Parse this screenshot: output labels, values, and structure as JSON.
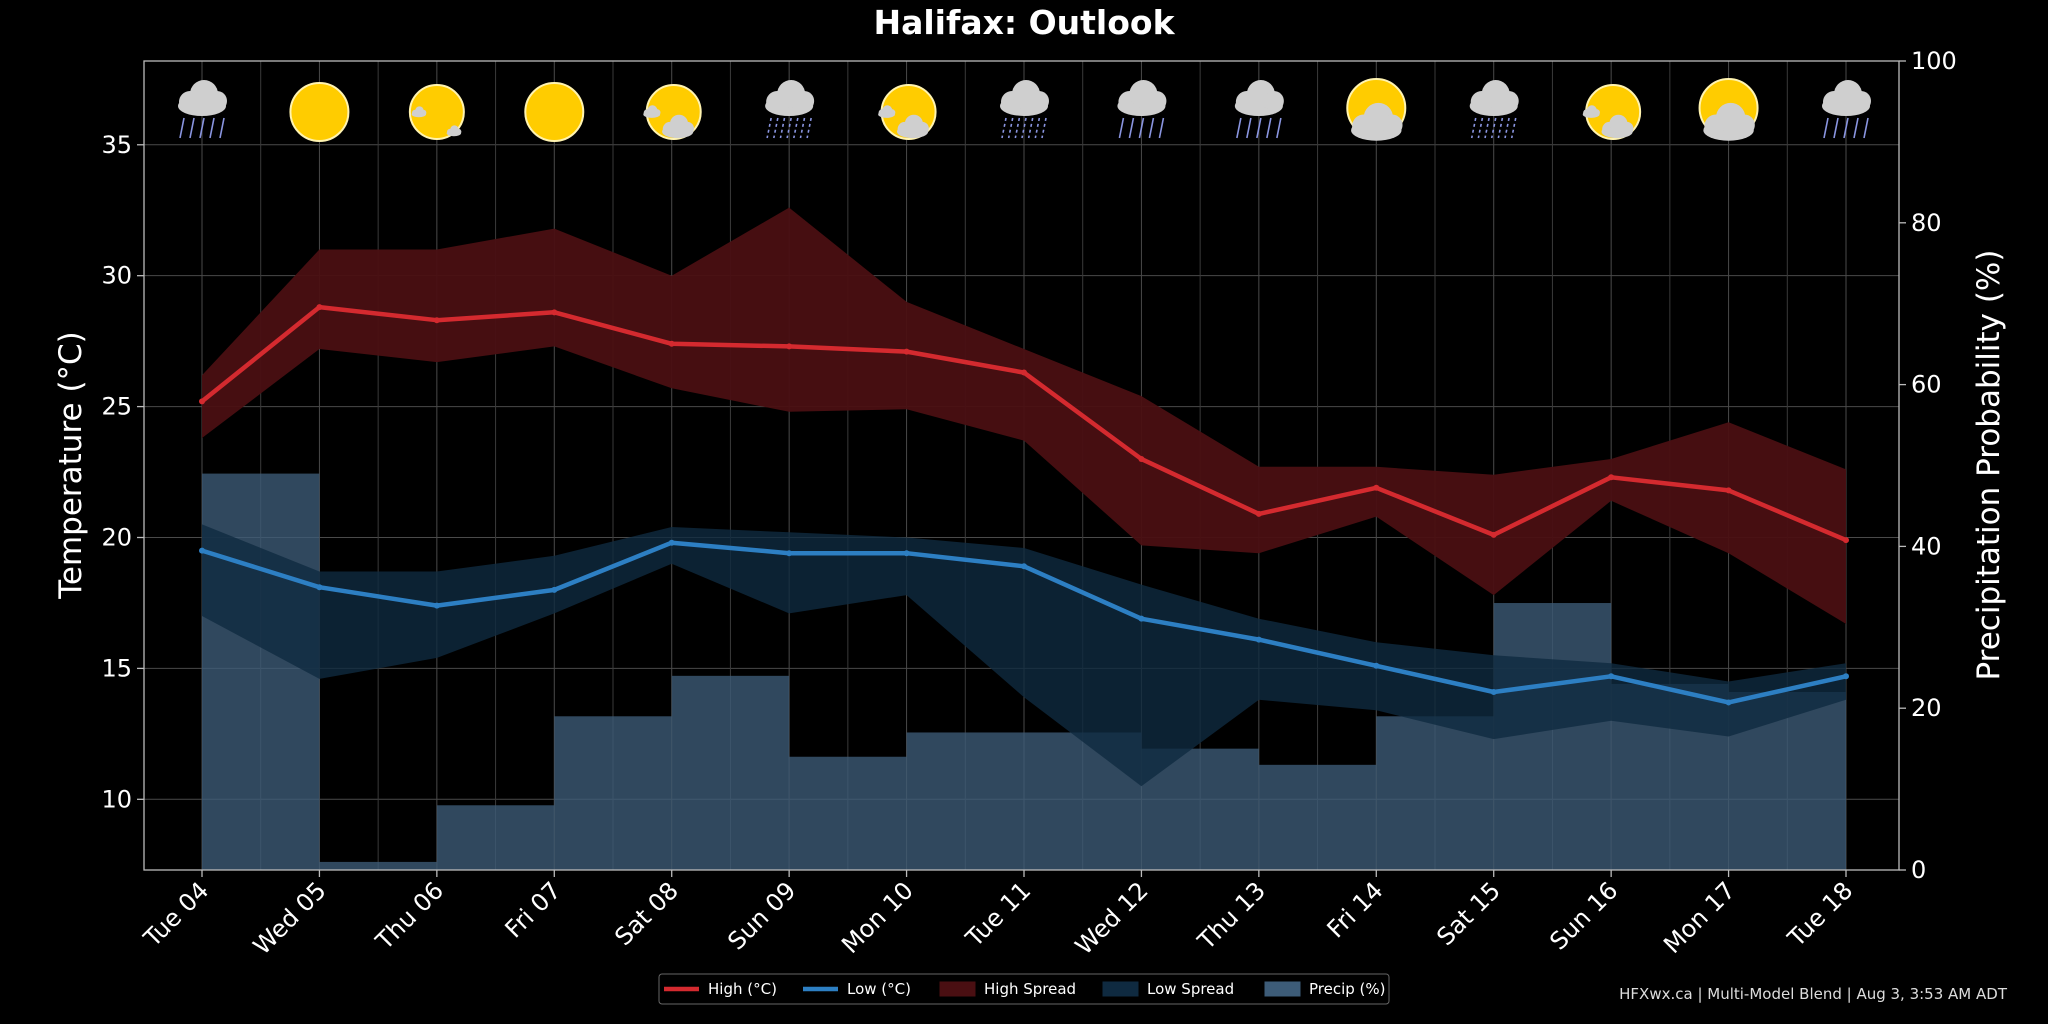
{
  "chart_data": {
    "type": "line",
    "title": "Halifax: Outlook",
    "ylabel": "Temperature (°C)",
    "y2label": "Precipitation Probability (%)",
    "ylim": [
      7.3,
      38.2
    ],
    "y2lim": [
      0,
      100
    ],
    "yticks": [
      10,
      15,
      20,
      25,
      30,
      35
    ],
    "y2ticks": [
      0,
      20,
      40,
      60,
      80,
      100
    ],
    "categories": [
      "Tue 04",
      "Wed 05",
      "Thu 06",
      "Fri 07",
      "Sat 08",
      "Sun 09",
      "Mon 10",
      "Tue 11",
      "Wed 12",
      "Thu 13",
      "Fri 14",
      "Sat 15",
      "Sun 16",
      "Mon 17",
      "Tue 18"
    ],
    "icons": [
      "rain-icon",
      "sun-icon",
      "mostly-sunny-icon",
      "sun-icon",
      "partly-cloudy-icon",
      "heavy-rain-icon",
      "partly-cloudy-icon",
      "heavy-rain-icon",
      "rain-icon",
      "rain-icon",
      "mostly-cloudy-icon",
      "heavy-rain-icon",
      "partly-cloudy-icon",
      "mostly-cloudy-icon",
      "rain-icon"
    ],
    "series": [
      {
        "name": "High (°C)",
        "color": "#d42a2f",
        "values": [
          25.2,
          28.8,
          28.3,
          28.6,
          27.4,
          27.3,
          27.1,
          26.3,
          23.0,
          20.9,
          21.9,
          20.1,
          22.3,
          21.8,
          19.9
        ]
      },
      {
        "name": "Low (°C)",
        "color": "#2d7fc3",
        "values": [
          19.5,
          18.1,
          17.4,
          18.0,
          19.8,
          19.4,
          19.4,
          18.9,
          16.9,
          16.1,
          15.1,
          14.1,
          14.7,
          13.7,
          14.7
        ]
      },
      {
        "name": "High Spread",
        "color": "#4a0f12",
        "upper": [
          26.2,
          31.0,
          31.0,
          31.8,
          30.0,
          32.6,
          29.0,
          27.2,
          25.4,
          22.7,
          22.7,
          22.4,
          23.0,
          24.4,
          22.6
        ],
        "lower": [
          23.8,
          27.2,
          26.7,
          27.3,
          25.7,
          24.8,
          24.9,
          23.7,
          19.7,
          19.4,
          20.8,
          17.8,
          21.4,
          19.4,
          16.7
        ]
      },
      {
        "name": "Low Spread",
        "color": "#0f2a40",
        "upper": [
          20.5,
          18.7,
          18.7,
          19.3,
          20.4,
          20.2,
          20.0,
          19.6,
          18.2,
          16.9,
          16.0,
          15.5,
          15.2,
          14.5,
          15.2
        ],
        "lower": [
          17.0,
          14.6,
          15.4,
          17.1,
          19.0,
          17.1,
          17.8,
          13.9,
          10.5,
          13.8,
          13.4,
          12.3,
          13.0,
          12.4,
          13.8
        ]
      },
      {
        "name": "Precip (%)",
        "color": "#3d5c78",
        "values": [
          49,
          1,
          8,
          19,
          24,
          14,
          17,
          17,
          15,
          13,
          19,
          33,
          23,
          22,
          22
        ]
      }
    ],
    "grid": true,
    "legend_position": "bottom-center"
  },
  "footer": "HFXwx.ca | Multi-Model Blend | Aug 3, 3:53 AM ADT"
}
